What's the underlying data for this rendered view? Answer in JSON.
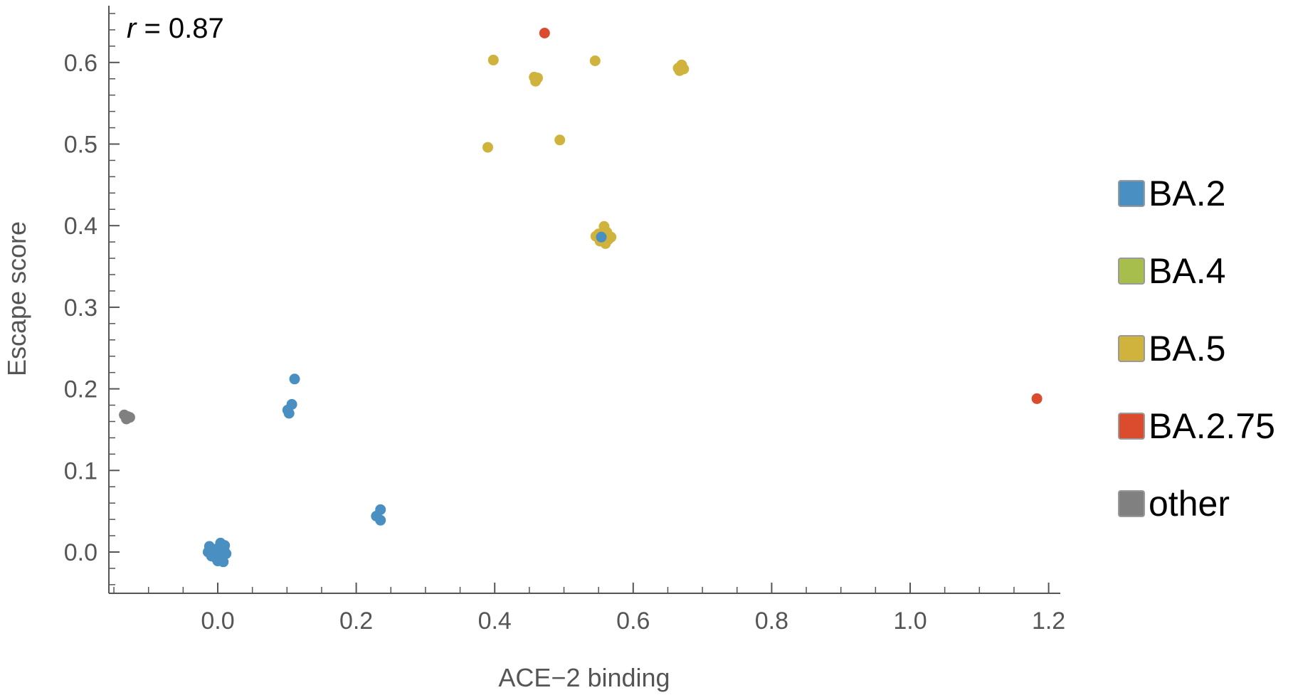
{
  "chart_data": {
    "type": "scatter",
    "title": "",
    "xlabel": "ACE−2 binding",
    "ylabel": "Escape score",
    "xlim": [
      -0.16,
      1.21
    ],
    "ylim": [
      -0.05,
      0.67
    ],
    "xticks": [
      0.0,
      0.2,
      0.4,
      0.6,
      0.8,
      1.0,
      1.2
    ],
    "xtick_labels": [
      "0.0",
      "0.2",
      "0.4",
      "0.6",
      "0.8",
      "1.0",
      "1.2"
    ],
    "yticks": [
      0.0,
      0.1,
      0.2,
      0.3,
      0.4,
      0.5,
      0.6
    ],
    "ytick_labels": [
      "0.0",
      "0.1",
      "0.2",
      "0.3",
      "0.4",
      "0.5",
      "0.6"
    ],
    "annotation": {
      "var": "r",
      "text": " = 0.87"
    },
    "legend_position": "right",
    "grid": false,
    "series": [
      {
        "name": "BA.2",
        "color": "#4a8fc2",
        "points": [
          [
            0.0,
            0.0
          ],
          [
            -0.012,
            0.007
          ],
          [
            0.004,
            0.011
          ],
          [
            0.009,
            0.004
          ],
          [
            -0.009,
            -0.005
          ],
          [
            0.012,
            -0.002
          ],
          [
            0.0,
            -0.011
          ],
          [
            0.005,
            -0.007
          ],
          [
            -0.005,
            0.003
          ],
          [
            0.003,
            -0.003
          ],
          [
            0.008,
            -0.012
          ],
          [
            -0.014,
            0.0
          ],
          [
            0.002,
            0.006
          ],
          [
            -0.002,
            -0.008
          ],
          [
            0.01,
            0.008
          ],
          [
            0.111,
            0.212
          ],
          [
            0.107,
            0.181
          ],
          [
            0.101,
            0.174
          ],
          [
            0.103,
            0.17
          ],
          [
            0.235,
            0.052
          ],
          [
            0.229,
            0.044
          ],
          [
            0.235,
            0.039
          ],
          [
            0.554,
            0.386
          ]
        ]
      },
      {
        "name": "BA.4",
        "color": "#a7bd4c",
        "points": []
      },
      {
        "name": "BA.5",
        "color": "#cfb33c",
        "points": [
          [
            0.398,
            0.603
          ],
          [
            0.545,
            0.602
          ],
          [
            0.457,
            0.582
          ],
          [
            0.462,
            0.581
          ],
          [
            0.459,
            0.577
          ],
          [
            0.665,
            0.593
          ],
          [
            0.67,
            0.597
          ],
          [
            0.673,
            0.592
          ],
          [
            0.667,
            0.59
          ],
          [
            0.39,
            0.496
          ],
          [
            0.494,
            0.505
          ],
          [
            0.55,
            0.39
          ],
          [
            0.558,
            0.399
          ],
          [
            0.564,
            0.383
          ],
          [
            0.552,
            0.381
          ],
          [
            0.568,
            0.386
          ],
          [
            0.56,
            0.378
          ],
          [
            0.546,
            0.387
          ],
          [
            0.562,
            0.392
          ]
        ]
      },
      {
        "name": "BA.2.75",
        "color": "#db4b2e",
        "points": [
          [
            0.472,
            0.636
          ],
          [
            1.183,
            0.188
          ]
        ]
      },
      {
        "name": "other",
        "color": "#808080",
        "points": [
          [
            -0.135,
            0.168
          ],
          [
            -0.13,
            0.166
          ],
          [
            -0.127,
            0.165
          ],
          [
            -0.132,
            0.163
          ]
        ]
      }
    ]
  }
}
